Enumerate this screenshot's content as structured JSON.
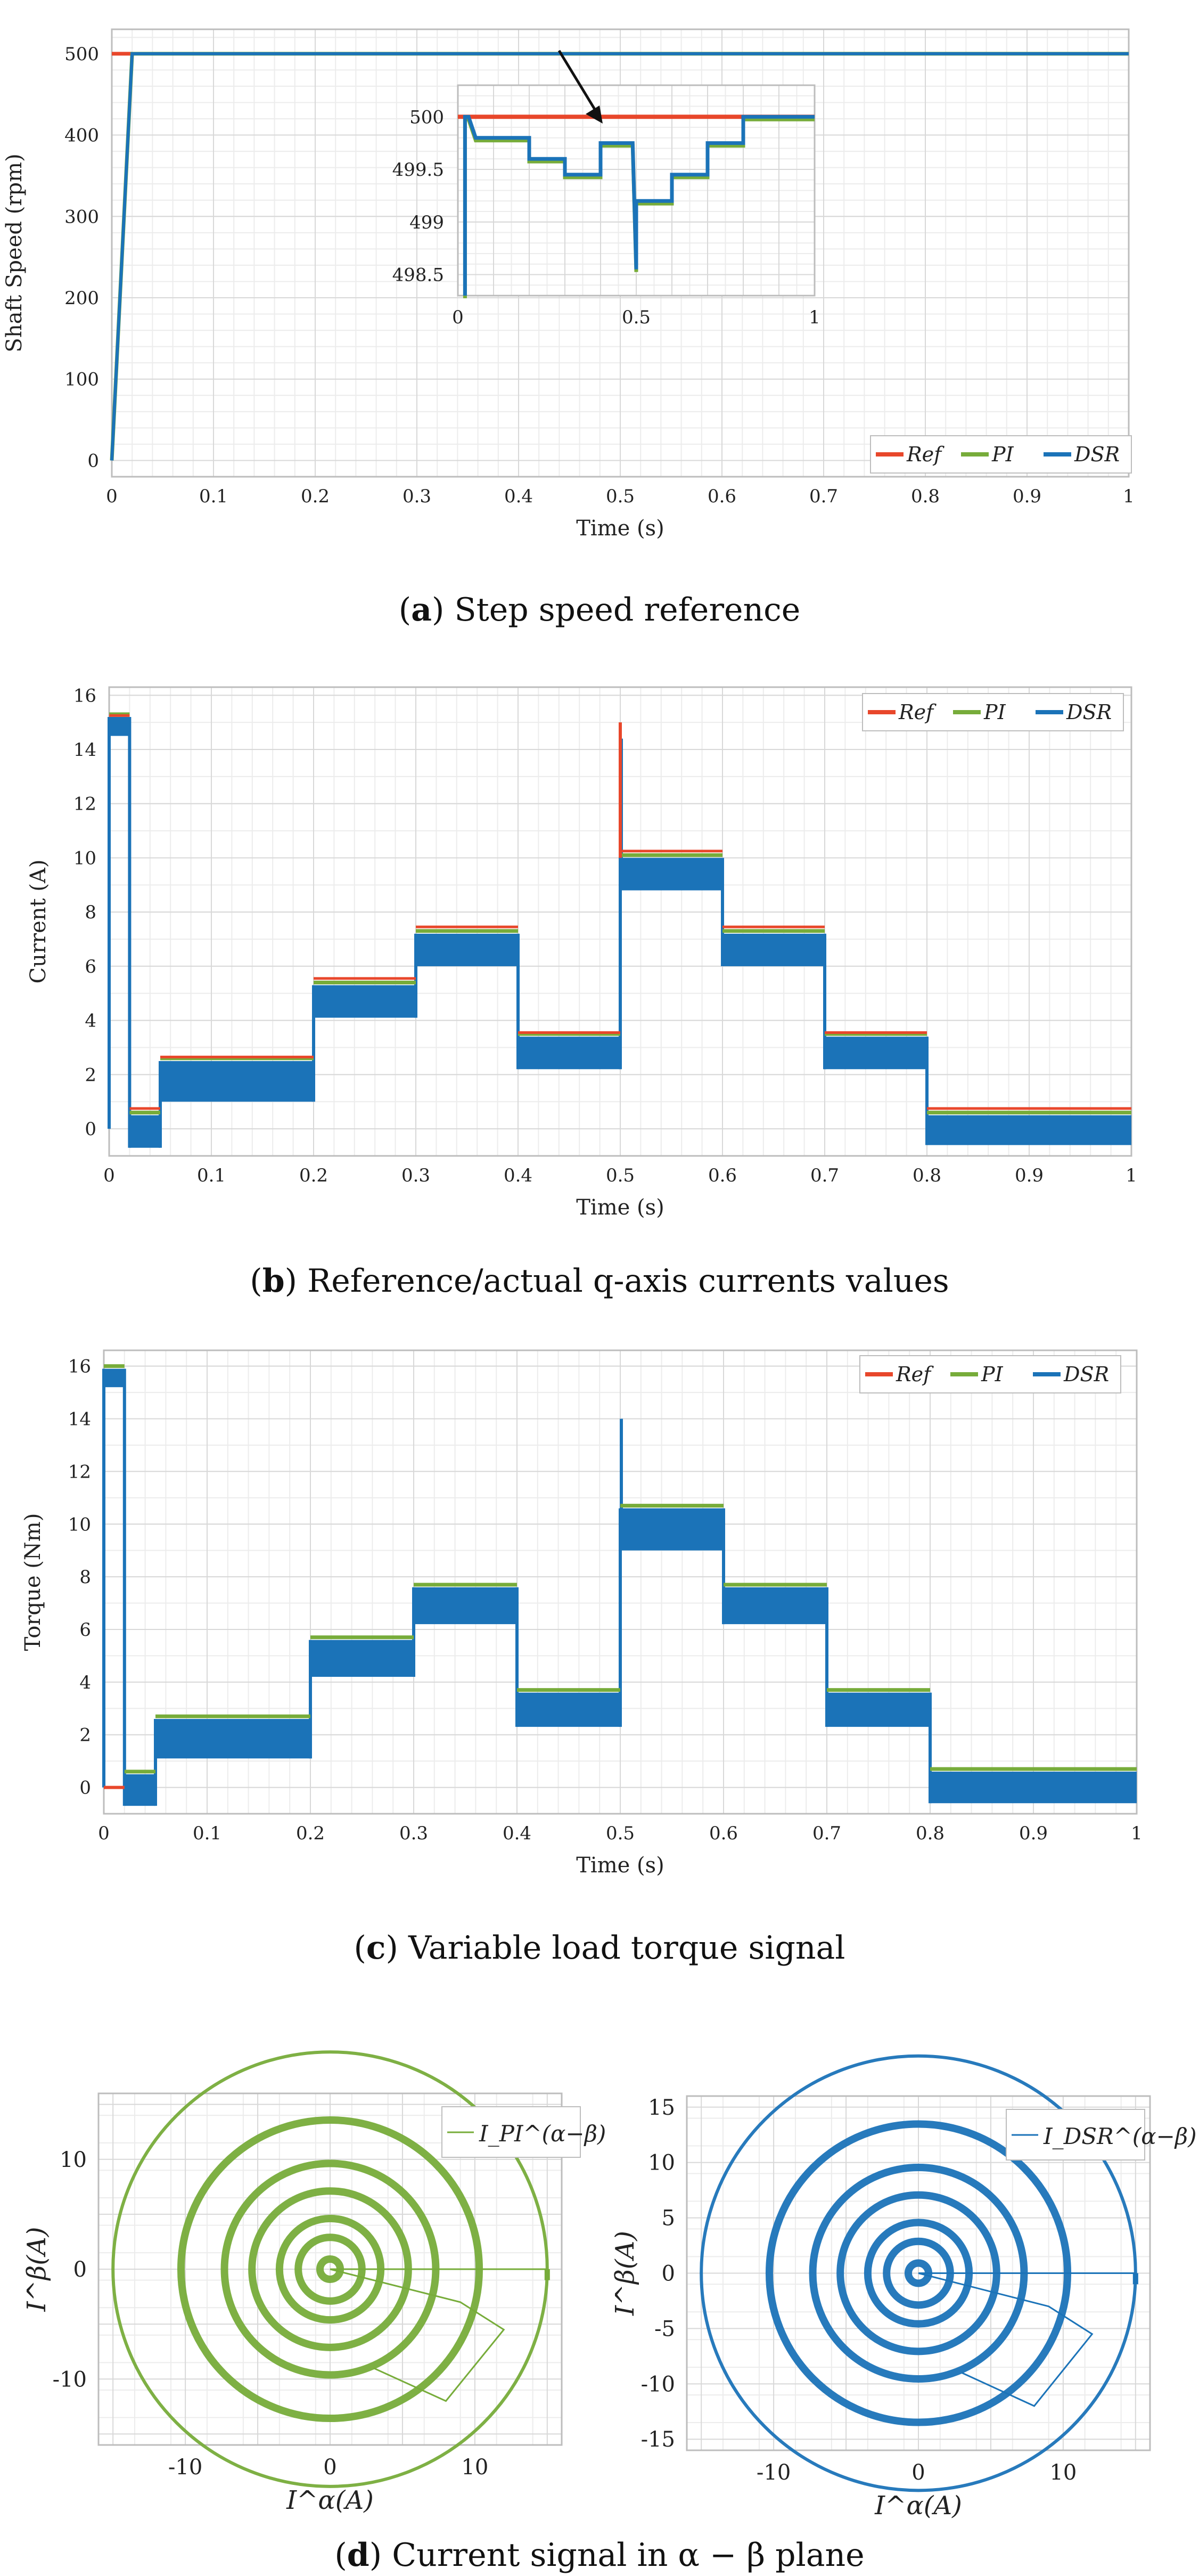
{
  "colors": {
    "ref": "#e8472b",
    "pi": "#77ac3a",
    "dsr": "#1b73b8"
  },
  "captions": {
    "a": {
      "label": "a",
      "text": "Step speed reference"
    },
    "b": {
      "label": "b",
      "text": "Reference/actual q-axis currents values"
    },
    "c": {
      "label": "c",
      "text": "Variable load torque signal"
    },
    "d": {
      "label": "d",
      "text": "Current signal in α − β plane"
    }
  },
  "chart_data": [
    {
      "id": "a",
      "type": "line",
      "title": "",
      "xlabel": "Time (s)",
      "ylabel": "Shaft Speed (rpm)",
      "xlim": [
        0,
        1
      ],
      "ylim": [
        -20,
        530
      ],
      "xticks": [
        "0",
        "0.1",
        "0.2",
        "0.3",
        "0.4",
        "0.5",
        "0.6",
        "0.7",
        "0.8",
        "0.9",
        "1"
      ],
      "yticks": [
        "0",
        "100",
        "200",
        "300",
        "400",
        "500"
      ],
      "legend": [
        "Ref",
        "PI",
        "DSR"
      ],
      "series": [
        {
          "name": "Ref",
          "x": [
            0,
            1
          ],
          "y": [
            500,
            500
          ]
        },
        {
          "name": "PI",
          "x": [
            0,
            0.02,
            1
          ],
          "y": [
            0,
            500,
            500
          ]
        },
        {
          "name": "DSR",
          "x": [
            0,
            0.02,
            1
          ],
          "y": [
            0,
            500,
            500
          ]
        }
      ],
      "inset": {
        "xlim": [
          0,
          1
        ],
        "ylim": [
          498.3,
          500.3
        ],
        "xticks": [
          "0",
          "0.5",
          "1"
        ],
        "yticks": [
          "498.5",
          "499",
          "499.5",
          "500"
        ],
        "series": [
          {
            "name": "Ref",
            "x": [
              0,
              1
            ],
            "y": [
              500,
              500
            ]
          },
          {
            "name": "DSR",
            "x": [
              0.02,
              0.02,
              0.03,
              0.05,
              0.2,
              0.2,
              0.3,
              0.3,
              0.4,
              0.4,
              0.49,
              0.5,
              0.5,
              0.51,
              0.6,
              0.6,
              0.7,
              0.7,
              0.8,
              0.8,
              1
            ],
            "y": [
              498.3,
              500,
              500,
              499.8,
              499.8,
              499.6,
              499.6,
              499.45,
              499.45,
              499.75,
              499.75,
              498.55,
              499.2,
              499.2,
              499.2,
              499.45,
              499.45,
              499.75,
              499.75,
              500,
              500
            ]
          }
        ]
      }
    },
    {
      "id": "b",
      "type": "line",
      "title": "",
      "xlabel": "Time (s)",
      "ylabel": "Current (A)",
      "xlim": [
        0,
        1
      ],
      "ylim": [
        -1,
        16.3
      ],
      "xticks": [
        "0",
        "0.1",
        "0.2",
        "0.3",
        "0.4",
        "0.5",
        "0.6",
        "0.7",
        "0.8",
        "0.9",
        "1"
      ],
      "yticks": [
        "0",
        "2",
        "4",
        "6",
        "8",
        "10",
        "12",
        "14",
        "16"
      ],
      "legend": [
        "Ref",
        "PI",
        "DSR"
      ],
      "steps": [
        {
          "x0": 0.0,
          "x1": 0.02,
          "ref": 15.2,
          "lo": 14.5,
          "hi": 15.2
        },
        {
          "x0": 0.02,
          "x1": 0.05,
          "ref": 0.7,
          "lo": -0.7,
          "hi": 0.5
        },
        {
          "x0": 0.05,
          "x1": 0.2,
          "ref": 2.6,
          "lo": 1.0,
          "hi": 2.5
        },
        {
          "x0": 0.2,
          "x1": 0.3,
          "ref": 5.5,
          "lo": 4.1,
          "hi": 5.3
        },
        {
          "x0": 0.3,
          "x1": 0.4,
          "ref": 7.4,
          "lo": 6.0,
          "hi": 7.2
        },
        {
          "x0": 0.4,
          "x1": 0.5,
          "ref": 3.5,
          "lo": 2.2,
          "hi": 3.4
        },
        {
          "x0": 0.5,
          "x1": 0.6,
          "ref": 10.2,
          "lo": 8.8,
          "hi": 10.0
        },
        {
          "x0": 0.6,
          "x1": 0.7,
          "ref": 7.4,
          "lo": 6.0,
          "hi": 7.2
        },
        {
          "x0": 0.7,
          "x1": 0.8,
          "ref": 3.5,
          "lo": 2.2,
          "hi": 3.4
        },
        {
          "x0": 0.8,
          "x1": 1.0,
          "ref": 0.7,
          "lo": -0.6,
          "hi": 0.5
        }
      ],
      "spike": {
        "x": 0.5,
        "y": 15.0
      }
    },
    {
      "id": "c",
      "type": "line",
      "title": "",
      "xlabel": "Time (s)",
      "ylabel": "Torque (Nm)",
      "xlim": [
        0,
        1
      ],
      "ylim": [
        -1,
        16.6
      ],
      "xticks": [
        "0",
        "0.1",
        "0.2",
        "0.3",
        "0.4",
        "0.5",
        "0.6",
        "0.7",
        "0.8",
        "0.9",
        "1"
      ],
      "yticks": [
        "0",
        "2",
        "4",
        "6",
        "8",
        "10",
        "12",
        "14",
        "16"
      ],
      "legend": [
        "Ref",
        "PI",
        "DSR"
      ],
      "ref_segment": {
        "x0": 0.0,
        "x1": 0.02,
        "y": 0
      },
      "steps": [
        {
          "x0": 0.0,
          "x1": 0.02,
          "lo": 15.2,
          "hi": 15.9
        },
        {
          "x0": 0.02,
          "x1": 0.05,
          "lo": -0.7,
          "hi": 0.5
        },
        {
          "x0": 0.05,
          "x1": 0.2,
          "lo": 1.1,
          "hi": 2.6
        },
        {
          "x0": 0.2,
          "x1": 0.3,
          "lo": 4.2,
          "hi": 5.6
        },
        {
          "x0": 0.3,
          "x1": 0.4,
          "lo": 6.2,
          "hi": 7.6
        },
        {
          "x0": 0.4,
          "x1": 0.5,
          "lo": 2.3,
          "hi": 3.6
        },
        {
          "x0": 0.5,
          "x1": 0.6,
          "lo": 9.0,
          "hi": 10.6
        },
        {
          "x0": 0.6,
          "x1": 0.7,
          "lo": 6.2,
          "hi": 7.6
        },
        {
          "x0": 0.7,
          "x1": 0.8,
          "lo": 2.3,
          "hi": 3.6
        },
        {
          "x0": 0.8,
          "x1": 1.0,
          "lo": -0.6,
          "hi": 0.6
        }
      ],
      "spike": {
        "x": 0.5,
        "y": 14.6
      }
    },
    {
      "id": "d1",
      "type": "scatter",
      "title": "",
      "xlabel": "I^α(A)",
      "ylabel": "I^β(A)",
      "xlim": [
        -16,
        16
      ],
      "ylim": [
        -16,
        16
      ],
      "xticks": [
        "-10",
        "0",
        "10"
      ],
      "yticks": [
        "-10",
        "0",
        "10"
      ],
      "legend": [
        "I_PI^(α−β)"
      ],
      "radii": [
        15,
        10.3,
        7.3,
        5.4,
        3.5,
        2.2,
        0.7
      ]
    },
    {
      "id": "d2",
      "type": "scatter",
      "title": "",
      "xlabel": "I^α(A)",
      "ylabel": "I^β(A)",
      "xlim": [
        -16,
        16
      ],
      "ylim": [
        -16,
        16
      ],
      "xticks": [
        "-10",
        "0",
        "10"
      ],
      "yticks": [
        "-15",
        "-10",
        "-5",
        "0",
        "5",
        "10",
        "15"
      ],
      "legend": [
        "I_DSR^(α−β)"
      ],
      "radii": [
        15,
        10.3,
        7.3,
        5.4,
        3.5,
        2.2,
        0.7
      ]
    }
  ]
}
